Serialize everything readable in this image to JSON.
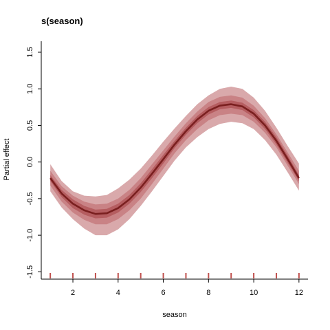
{
  "chart_data": {
    "type": "line",
    "title": "s(season)",
    "xlabel": "season",
    "ylabel": "Partial effect",
    "xlim": [
      0.6,
      12.4
    ],
    "ylim": [
      -1.6,
      1.65
    ],
    "x_ticks": [
      2,
      4,
      6,
      8,
      10,
      12
    ],
    "y_ticks": [
      -1.5,
      -1.0,
      -0.5,
      0.0,
      0.5,
      1.0,
      1.5
    ],
    "y_tick_labels": [
      "-1.5",
      "-1.0",
      "-0.5",
      "0.0",
      "0.5",
      "1.0",
      "1.5"
    ],
    "grid": false,
    "series": [
      {
        "x": [
          1,
          1.5,
          2,
          2.5,
          3,
          3.5,
          4,
          4.5,
          5,
          5.5,
          6,
          6.5,
          7,
          7.5,
          8,
          8.5,
          9,
          9.5,
          10,
          10.5,
          11,
          11.5,
          12
        ],
        "y": [
          -0.22,
          -0.43,
          -0.57,
          -0.66,
          -0.71,
          -0.7,
          -0.63,
          -0.51,
          -0.35,
          -0.16,
          0.04,
          0.24,
          0.42,
          0.58,
          0.7,
          0.77,
          0.79,
          0.76,
          0.66,
          0.5,
          0.29,
          0.04,
          -0.22
        ],
        "bands": [
          {
            "label": "outer",
            "lower": [
              -0.4,
              -0.62,
              -0.78,
              -0.91,
              -1.0,
              -1.0,
              -0.92,
              -0.78,
              -0.6,
              -0.4,
              -0.19,
              0.02,
              0.2,
              0.34,
              0.45,
              0.52,
              0.55,
              0.53,
              0.45,
              0.3,
              0.1,
              -0.14,
              -0.39
            ],
            "upper": [
              -0.03,
              -0.26,
              -0.4,
              -0.46,
              -0.47,
              -0.45,
              -0.36,
              -0.24,
              -0.09,
              0.09,
              0.28,
              0.46,
              0.63,
              0.79,
              0.91,
              1.0,
              1.03,
              1.0,
              0.88,
              0.7,
              0.47,
              0.22,
              -0.02
            ]
          },
          {
            "label": "mid",
            "lower": [
              -0.32,
              -0.54,
              -0.69,
              -0.79,
              -0.85,
              -0.85,
              -0.78,
              -0.66,
              -0.5,
              -0.3,
              -0.09,
              0.12,
              0.3,
              0.45,
              0.57,
              0.64,
              0.66,
              0.64,
              0.55,
              0.4,
              0.2,
              -0.05,
              -0.3
            ],
            "upper": [
              -0.12,
              -0.33,
              -0.46,
              -0.54,
              -0.58,
              -0.57,
              -0.5,
              -0.38,
              -0.22,
              -0.03,
              0.16,
              0.35,
              0.53,
              0.69,
              0.82,
              0.89,
              0.91,
              0.88,
              0.77,
              0.6,
              0.38,
              0.13,
              -0.12
            ]
          },
          {
            "label": "inner",
            "lower": [
              -0.26,
              -0.48,
              -0.63,
              -0.72,
              -0.77,
              -0.76,
              -0.69,
              -0.57,
              -0.41,
              -0.22,
              -0.02,
              0.19,
              0.37,
              0.53,
              0.65,
              0.72,
              0.74,
              0.71,
              0.61,
              0.45,
              0.24,
              -0.01,
              -0.26
            ],
            "upper": [
              -0.18,
              -0.38,
              -0.51,
              -0.6,
              -0.65,
              -0.64,
              -0.57,
              -0.45,
              -0.29,
              -0.1,
              0.1,
              0.29,
              0.47,
              0.63,
              0.75,
              0.82,
              0.84,
              0.81,
              0.71,
              0.55,
              0.34,
              0.09,
              -0.18
            ]
          }
        ]
      }
    ],
    "rug_x": [
      1,
      2,
      3,
      4,
      5,
      6,
      7,
      8,
      9,
      10,
      11,
      12
    ],
    "colors": {
      "line": "#7a1f1f",
      "band_outer": "#d9a9ab",
      "band_mid": "#c98285",
      "band_inner": "#b55d60",
      "rug": "#c0504d",
      "axis": "#000000"
    }
  }
}
